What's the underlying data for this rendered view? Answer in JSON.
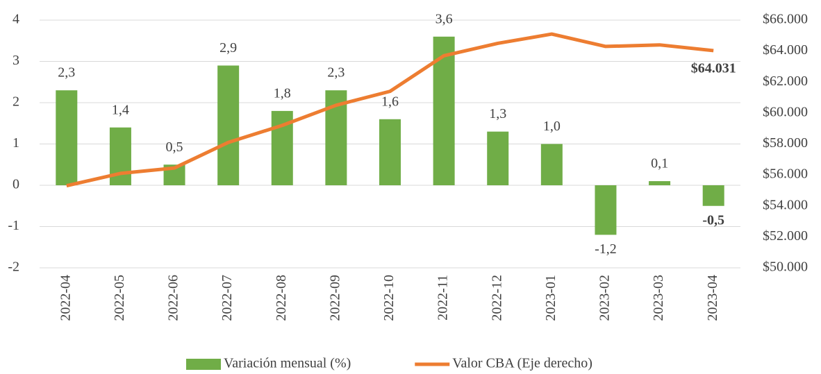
{
  "chart_data": {
    "type": "bar",
    "categories": [
      "2022-04",
      "2022-05",
      "2022-06",
      "2022-07",
      "2022-08",
      "2022-09",
      "2022-10",
      "2022-11",
      "2022-12",
      "2023-01",
      "2023-02",
      "2023-03",
      "2023-04"
    ],
    "series": [
      {
        "name": "Variación mensual (%)",
        "type": "bar",
        "color": "#70ad47",
        "values": [
          2.3,
          1.4,
          0.5,
          2.9,
          1.8,
          2.3,
          1.6,
          3.6,
          1.3,
          1.0,
          -1.2,
          0.1,
          -0.5
        ],
        "value_labels": [
          "2,3",
          "1,4",
          "0,5",
          "2,9",
          "1,8",
          "2,3",
          "1,6",
          "3,6",
          "1,3",
          "1,0",
          "-1,2",
          "0,1",
          "-0,5"
        ]
      },
      {
        "name": "Valor CBA (Eje derecho)",
        "type": "line",
        "axis": "y2",
        "color": "#ed7d31",
        "values": [
          55300,
          56100,
          56450,
          58100,
          59200,
          60500,
          61400,
          63700,
          64500,
          65100,
          64300,
          64400,
          64031
        ],
        "value_labels": [
          null,
          null,
          null,
          null,
          null,
          null,
          null,
          null,
          null,
          null,
          null,
          null,
          "$64.031"
        ]
      }
    ],
    "ylim": [
      -2,
      4
    ],
    "yticks": [
      -2,
      -1,
      0,
      1,
      2,
      3,
      4
    ],
    "y2lim": [
      50000,
      66000
    ],
    "y2ticks": [
      {
        "value": 50000,
        "label": "$50.000"
      },
      {
        "value": 52000,
        "label": "$52.000"
      },
      {
        "value": 54000,
        "label": "$54.000"
      },
      {
        "value": 56000,
        "label": "$56.000"
      },
      {
        "value": 58000,
        "label": "$58.000"
      },
      {
        "value": 60000,
        "label": "$60.000"
      },
      {
        "value": 62000,
        "label": "$62.000"
      },
      {
        "value": 64000,
        "label": "$64.000"
      },
      {
        "value": 66000,
        "label": "$66.000"
      }
    ],
    "grid": true,
    "legend": "bottom"
  }
}
